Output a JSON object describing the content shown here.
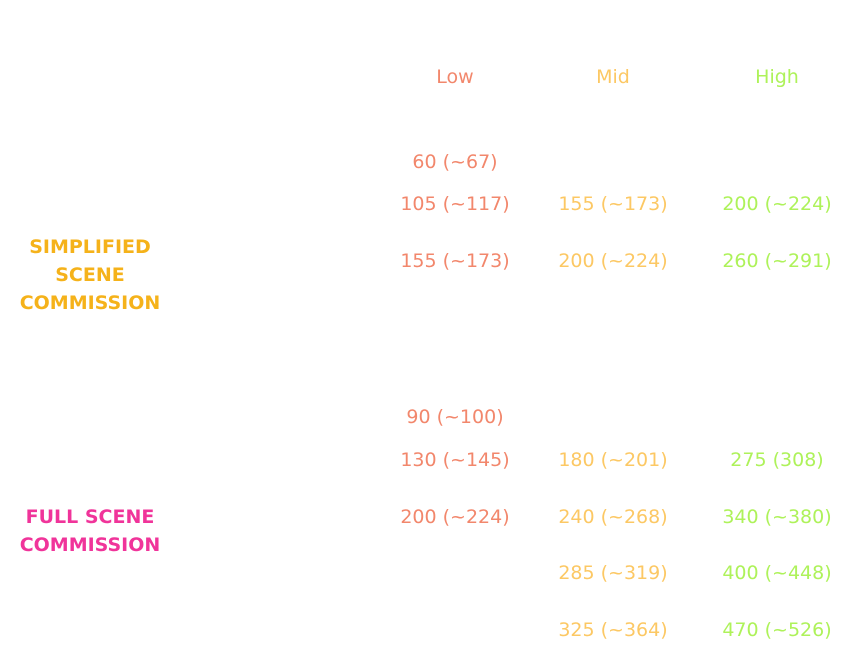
{
  "header": {
    "columns": [
      "Low",
      "Mid",
      "High"
    ]
  },
  "sections": [
    {
      "label": [
        "SIMPLIFIED",
        "SCENE",
        "COMMISSION"
      ],
      "rows": [
        [
          "60 (~67)",
          null,
          null
        ],
        [
          "105 (~117)",
          "155 (~173)",
          "200 (~224)"
        ],
        [
          "155 (~173)",
          "200 (~224)",
          "260 (~291)"
        ]
      ]
    },
    {
      "label": [
        "FULL SCENE",
        "COMMISSION"
      ],
      "rows": [
        [
          "90 (~100)",
          null,
          null
        ],
        [
          "130 (~145)",
          "180 (~201)",
          "275 (308)"
        ],
        [
          "200 (~224)",
          "240 (~268)",
          "340 (~380)"
        ],
        [
          null,
          "285 (~319)",
          "400 (~448)"
        ],
        [
          null,
          "325 (~364)",
          "470 (~526)"
        ]
      ]
    }
  ]
}
